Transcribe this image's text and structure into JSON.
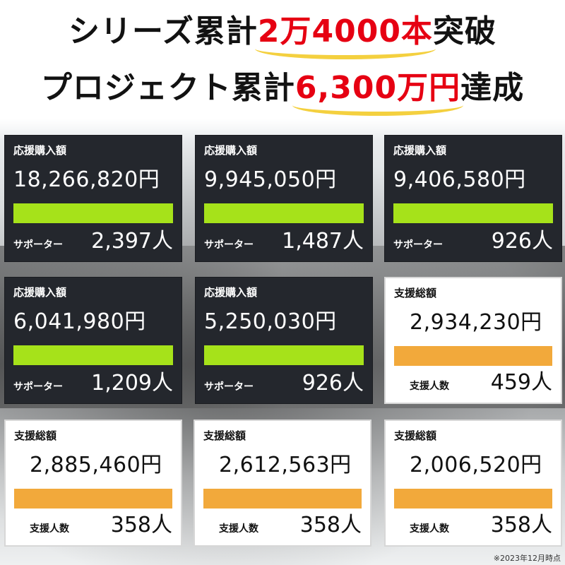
{
  "headline": {
    "line1_prefix": "シリーズ累計",
    "line1_highlight": "2万4000本",
    "line1_suffix": "突破",
    "line2_prefix": "プロジェクト累計",
    "line2_highlight": "6,300万円",
    "line2_suffix": "達成",
    "highlight_color": "#e60012",
    "underline_color": "#f4d03f"
  },
  "cards": [
    {
      "style": "dark",
      "label": "応援購入額",
      "amount": "18,266,820円",
      "count_label": "サポーター",
      "count": "2,397人"
    },
    {
      "style": "dark",
      "label": "応援購入額",
      "amount": "9,945,050円",
      "count_label": "サポーター",
      "count": "1,487人"
    },
    {
      "style": "dark",
      "label": "応援購入額",
      "amount": "9,406,580円",
      "count_label": "サポーター",
      "count": "926人"
    },
    {
      "style": "dark",
      "label": "応援購入額",
      "amount": "6,041,980円",
      "count_label": "サポーター",
      "count": "1,209人"
    },
    {
      "style": "dark",
      "label": "応援購入額",
      "amount": "5,250,030円",
      "count_label": "サポーター",
      "count": "926人"
    },
    {
      "style": "light",
      "label": "支援総額",
      "amount": "2,934,230円",
      "count_label": "支援人数",
      "count": "459人"
    },
    {
      "style": "light",
      "label": "支援総額",
      "amount": "2,885,460円",
      "count_label": "支援人数",
      "count": "358人"
    },
    {
      "style": "light",
      "label": "支援総額",
      "amount": "2,612,563円",
      "count_label": "支援人数",
      "count": "358人"
    },
    {
      "style": "light",
      "label": "支援総額",
      "amount": "2,006,520円",
      "count_label": "支援人数",
      "count": "358人"
    }
  ],
  "colors": {
    "dark_card_bg": "#24272d",
    "dark_bar": "#a6e21a",
    "light_bar": "#f2a93b"
  },
  "footnote": "※2023年12月時点"
}
